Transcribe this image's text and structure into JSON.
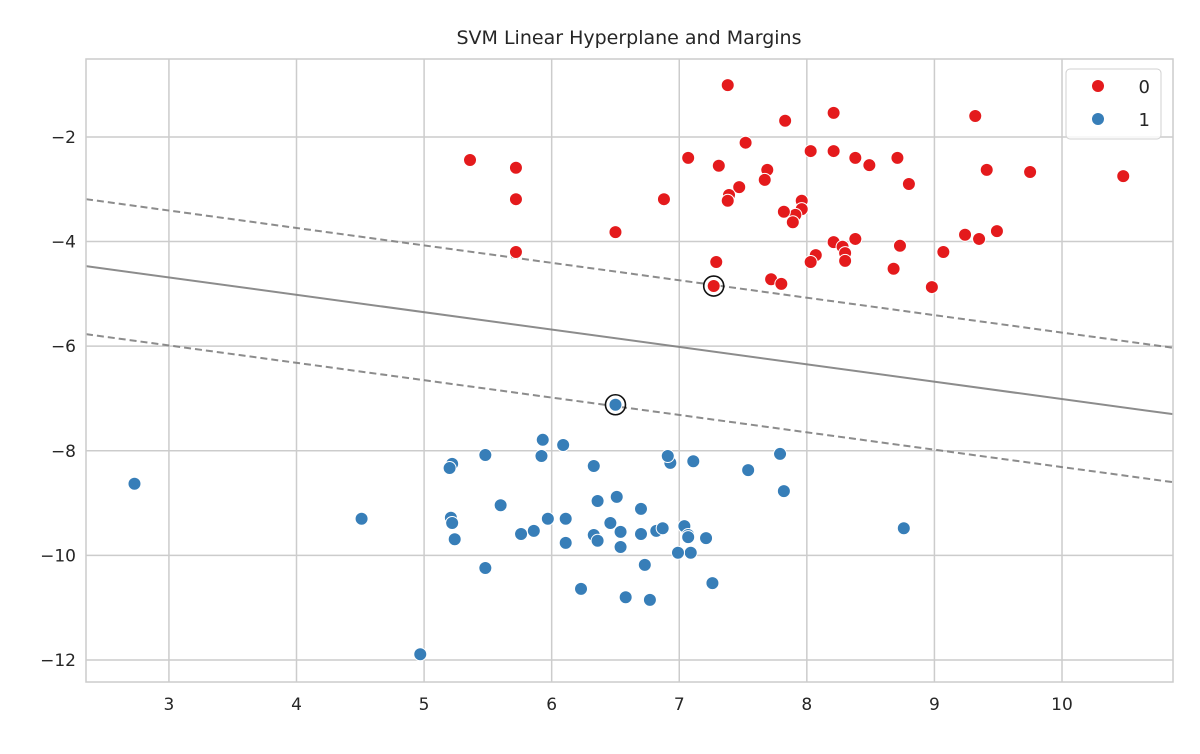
{
  "chart_data": {
    "type": "scatter",
    "title": "SVM Linear Hyperplane and Margins",
    "xlabel": "",
    "ylabel": "",
    "xlim": [
      2.35,
      10.87
    ],
    "ylim": [
      -12.42,
      -0.51
    ],
    "xticks": [
      3,
      4,
      5,
      6,
      7,
      8,
      9,
      10
    ],
    "yticks": [
      -2,
      -4,
      -6,
      -8,
      -10,
      -12
    ],
    "grid": true,
    "legend": "top-right",
    "series": [
      {
        "name": "0",
        "color": "#e41a1c",
        "points": [
          [
            7.38,
            -1.01
          ],
          [
            5.36,
            -2.44
          ],
          [
            5.72,
            -2.59
          ],
          [
            5.72,
            -3.19
          ],
          [
            5.72,
            -4.2
          ],
          [
            6.5,
            -3.82
          ],
          [
            6.88,
            -3.19
          ],
          [
            7.07,
            -2.4
          ],
          [
            7.31,
            -2.55
          ],
          [
            7.52,
            -2.11
          ],
          [
            7.83,
            -1.69
          ],
          [
            8.21,
            -1.54
          ],
          [
            9.32,
            -1.6
          ],
          [
            8.03,
            -2.27
          ],
          [
            8.21,
            -2.27
          ],
          [
            8.38,
            -2.4
          ],
          [
            8.49,
            -2.54
          ],
          [
            8.71,
            -2.4
          ],
          [
            8.8,
            -2.9
          ],
          [
            9.41,
            -2.63
          ],
          [
            9.75,
            -2.67
          ],
          [
            10.48,
            -2.75
          ],
          [
            7.69,
            -2.63
          ],
          [
            7.67,
            -2.82
          ],
          [
            7.47,
            -2.96
          ],
          [
            7.39,
            -3.11
          ],
          [
            7.38,
            -3.22
          ],
          [
            7.96,
            -3.22
          ],
          [
            7.96,
            -3.38
          ],
          [
            7.91,
            -3.49
          ],
          [
            7.82,
            -3.43
          ],
          [
            7.89,
            -3.63
          ],
          [
            8.21,
            -4.01
          ],
          [
            8.38,
            -3.95
          ],
          [
            8.28,
            -4.1
          ],
          [
            8.3,
            -4.22
          ],
          [
            8.3,
            -4.37
          ],
          [
            8.07,
            -4.26
          ],
          [
            8.03,
            -4.39
          ],
          [
            8.73,
            -4.08
          ],
          [
            9.24,
            -3.87
          ],
          [
            9.35,
            -3.95
          ],
          [
            9.49,
            -3.8
          ],
          [
            9.07,
            -4.2
          ],
          [
            8.68,
            -4.52
          ],
          [
            8.98,
            -4.87
          ],
          [
            7.29,
            -4.39
          ],
          [
            7.72,
            -4.72
          ],
          [
            7.8,
            -4.81
          ],
          [
            7.27,
            -4.85
          ]
        ]
      },
      {
        "name": "1",
        "color": "#377eb8",
        "points": [
          [
            2.73,
            -8.63
          ],
          [
            4.51,
            -9.3
          ],
          [
            4.97,
            -11.89
          ],
          [
            5.22,
            -8.25
          ],
          [
            5.2,
            -8.33
          ],
          [
            5.48,
            -8.08
          ],
          [
            5.24,
            -9.69
          ],
          [
            5.21,
            -9.28
          ],
          [
            5.22,
            -9.38
          ],
          [
            5.48,
            -10.24
          ],
          [
            5.6,
            -9.04
          ],
          [
            5.76,
            -9.59
          ],
          [
            5.86,
            -9.53
          ],
          [
            5.97,
            -9.3
          ],
          [
            5.93,
            -7.79
          ],
          [
            5.92,
            -8.1
          ],
          [
            6.09,
            -7.89
          ],
          [
            6.11,
            -9.3
          ],
          [
            6.11,
            -9.76
          ],
          [
            6.23,
            -10.64
          ],
          [
            6.33,
            -8.29
          ],
          [
            6.36,
            -8.96
          ],
          [
            6.33,
            -9.61
          ],
          [
            6.36,
            -9.72
          ],
          [
            6.46,
            -9.38
          ],
          [
            6.51,
            -8.88
          ],
          [
            6.54,
            -9.55
          ],
          [
            6.54,
            -9.84
          ],
          [
            6.58,
            -10.8
          ],
          [
            6.7,
            -9.11
          ],
          [
            6.7,
            -9.59
          ],
          [
            6.73,
            -10.18
          ],
          [
            6.77,
            -10.85
          ],
          [
            6.82,
            -9.53
          ],
          [
            6.87,
            -9.48
          ],
          [
            6.93,
            -8.23
          ],
          [
            6.91,
            -8.1
          ],
          [
            7.04,
            -9.44
          ],
          [
            7.07,
            -9.61
          ],
          [
            7.07,
            -9.65
          ],
          [
            7.09,
            -9.95
          ],
          [
            6.99,
            -9.95
          ],
          [
            7.11,
            -8.2
          ],
          [
            7.21,
            -9.67
          ],
          [
            7.26,
            -10.53
          ],
          [
            7.54,
            -8.37
          ],
          [
            7.79,
            -8.06
          ],
          [
            7.82,
            -8.77
          ],
          [
            8.76,
            -9.48
          ],
          [
            6.5,
            -7.12
          ]
        ]
      }
    ],
    "support_vectors": [
      [
        7.27,
        -4.85
      ],
      [
        6.5,
        -7.12
      ]
    ],
    "lines": [
      {
        "role": "hyperplane",
        "style": "solid",
        "x": [
          2.35,
          10.87
        ],
        "y": [
          -4.47,
          -7.3
        ]
      },
      {
        "role": "margin",
        "style": "dashed",
        "x": [
          2.35,
          10.87
        ],
        "y": [
          -3.19,
          -6.03
        ]
      },
      {
        "role": "margin",
        "style": "dashed",
        "x": [
          2.35,
          10.87
        ],
        "y": [
          -5.77,
          -8.6
        ]
      }
    ]
  }
}
